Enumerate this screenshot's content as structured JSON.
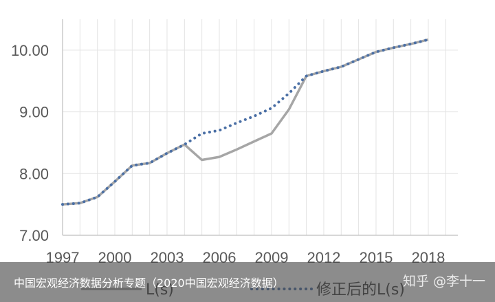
{
  "chart_data": {
    "type": "line",
    "x": [
      1997,
      1998,
      1999,
      2000,
      2001,
      2002,
      2003,
      2004,
      2005,
      2006,
      2007,
      2008,
      2009,
      2010,
      2011,
      2012,
      2013,
      2014,
      2015,
      2016,
      2017,
      2018
    ],
    "series": [
      {
        "name": "L(s)",
        "style": "solid",
        "color": "#a6a6a6",
        "values": [
          7.5,
          7.52,
          7.62,
          7.87,
          8.13,
          8.17,
          8.33,
          8.47,
          8.22,
          8.27,
          8.39,
          8.52,
          8.65,
          9.04,
          9.58,
          9.66,
          9.73,
          9.85,
          9.97,
          10.04,
          10.1,
          10.17
        ]
      },
      {
        "name": "修正后的L(s)",
        "style": "dotted",
        "color": "#4a6fa5",
        "values": [
          7.5,
          7.52,
          7.62,
          7.87,
          8.13,
          8.17,
          8.33,
          8.47,
          8.65,
          8.7,
          8.82,
          8.93,
          9.06,
          9.3,
          9.58,
          9.66,
          9.73,
          9.85,
          9.97,
          10.04,
          10.1,
          10.17
        ]
      }
    ],
    "ylim": [
      7.0,
      10.5
    ],
    "yticks": [
      "7.00",
      "8.00",
      "9.00",
      "10.00"
    ],
    "xticks": [
      "1997",
      "2000",
      "2003",
      "2006",
      "2009",
      "2012",
      "2015",
      "2018"
    ],
    "grid": true,
    "legend": "bottom"
  },
  "caption": "中国宏观经济数据分析专题（2020中国宏观经济数据）",
  "watermark": "知乎 @李十一"
}
